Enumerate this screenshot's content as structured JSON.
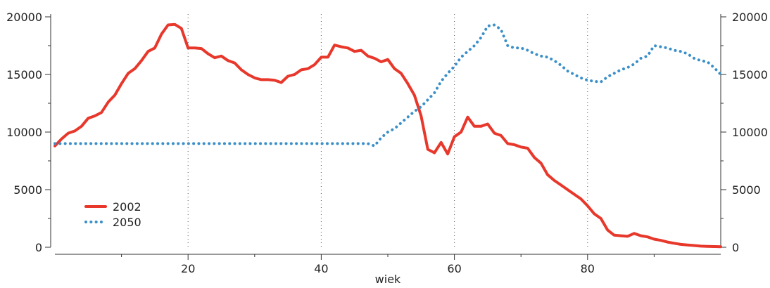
{
  "chart_data": {
    "type": "line",
    "xlabel": "wiek",
    "x_range": [
      0,
      100
    ],
    "y_range": [
      0,
      20000
    ],
    "x_ticks": [
      20,
      40,
      60,
      80
    ],
    "x_tick_labels": [
      "20",
      "40",
      "60",
      "80"
    ],
    "y_ticks": [
      0,
      5000,
      10000,
      15000,
      20000
    ],
    "y_tick_labels": [
      "0",
      "5000",
      "10000",
      "15000",
      "20000"
    ],
    "grid": "vertical dotted at x ticks",
    "legend_position": "bottom-left",
    "series": [
      {
        "name": "2002",
        "color": "#e8372b",
        "style": "solid",
        "x": [
          0,
          1,
          2,
          3,
          4,
          5,
          6,
          7,
          8,
          9,
          10,
          11,
          12,
          13,
          14,
          15,
          16,
          17,
          18,
          19,
          20,
          21,
          22,
          23,
          24,
          25,
          26,
          27,
          28,
          29,
          30,
          31,
          32,
          33,
          34,
          35,
          36,
          37,
          38,
          39,
          40,
          41,
          42,
          43,
          44,
          45,
          46,
          47,
          48,
          49,
          50,
          51,
          52,
          53,
          54,
          55,
          56,
          57,
          58,
          59,
          60,
          61,
          62,
          63,
          64,
          65,
          66,
          67,
          68,
          69,
          70,
          71,
          72,
          73,
          74,
          75,
          76,
          77,
          78,
          79,
          80,
          81,
          82,
          83,
          84,
          85,
          86,
          87,
          88,
          89,
          90,
          91,
          92,
          93,
          94,
          95,
          96,
          97,
          98,
          99,
          100
        ],
        "y": [
          8800,
          9400,
          9900,
          10100,
          10500,
          11200,
          11400,
          11700,
          12600,
          13200,
          14200,
          15100,
          15500,
          16200,
          17000,
          17300,
          18500,
          19300,
          19350,
          19000,
          17300,
          17300,
          17250,
          16800,
          16450,
          16600,
          16200,
          16000,
          15400,
          15000,
          14700,
          14550,
          14550,
          14500,
          14300,
          14850,
          15000,
          15400,
          15500,
          15850,
          16500,
          16500,
          17550,
          17400,
          17300,
          17000,
          17100,
          16600,
          16400,
          16100,
          16300,
          15500,
          15100,
          14200,
          13200,
          11400,
          8500,
          8200,
          9100,
          8100,
          9600,
          10000,
          11300,
          10500,
          10500,
          10700,
          9900,
          9700,
          9000,
          8900,
          8700,
          8600,
          7800,
          7300,
          6300,
          5800,
          5400,
          5000,
          4600,
          4200,
          3600,
          2900,
          2500,
          1500,
          1050,
          1000,
          950,
          1200,
          1000,
          900,
          700,
          600,
          450,
          350,
          250,
          200,
          150,
          100,
          80,
          60,
          50
        ]
      },
      {
        "name": "2050",
        "color": "#3a8fc8",
        "style": "dotted",
        "x": [
          0,
          1,
          2,
          3,
          4,
          5,
          6,
          7,
          8,
          9,
          10,
          11,
          12,
          13,
          14,
          15,
          16,
          17,
          18,
          19,
          20,
          21,
          22,
          23,
          24,
          25,
          26,
          27,
          28,
          29,
          30,
          31,
          32,
          33,
          34,
          35,
          36,
          37,
          38,
          39,
          40,
          41,
          42,
          43,
          44,
          45,
          46,
          47,
          48,
          49,
          50,
          51,
          52,
          53,
          54,
          55,
          56,
          57,
          58,
          59,
          60,
          61,
          62,
          63,
          64,
          65,
          66,
          67,
          68,
          69,
          70,
          71,
          72,
          73,
          74,
          75,
          76,
          77,
          78,
          79,
          80,
          81,
          82,
          83,
          84,
          85,
          86,
          87,
          88,
          89,
          90,
          91,
          92,
          93,
          94,
          95,
          96,
          97,
          98,
          99,
          100
        ],
        "y": [
          9000,
          9000,
          9000,
          9000,
          9000,
          9000,
          9000,
          9000,
          9000,
          9000,
          9000,
          9000,
          9000,
          9000,
          9000,
          9000,
          9000,
          9000,
          9000,
          9000,
          9000,
          9000,
          9000,
          9000,
          9000,
          9000,
          9000,
          9000,
          9000,
          9000,
          9000,
          9000,
          9000,
          9000,
          9000,
          9000,
          9000,
          9000,
          9000,
          9000,
          9000,
          9000,
          9000,
          9000,
          9000,
          9000,
          9000,
          9000,
          8800,
          9500,
          10000,
          10300,
          10800,
          11300,
          11800,
          12200,
          12800,
          13400,
          14400,
          15100,
          15700,
          16500,
          17000,
          17500,
          18200,
          19200,
          19300,
          18900,
          17500,
          17300,
          17300,
          17100,
          16800,
          16600,
          16500,
          16200,
          15800,
          15300,
          15000,
          14700,
          14500,
          14400,
          14350,
          14800,
          15100,
          15400,
          15600,
          15900,
          16400,
          16600,
          17500,
          17400,
          17300,
          17100,
          17000,
          16800,
          16400,
          16200,
          16100,
          15600,
          15000
        ]
      }
    ]
  }
}
